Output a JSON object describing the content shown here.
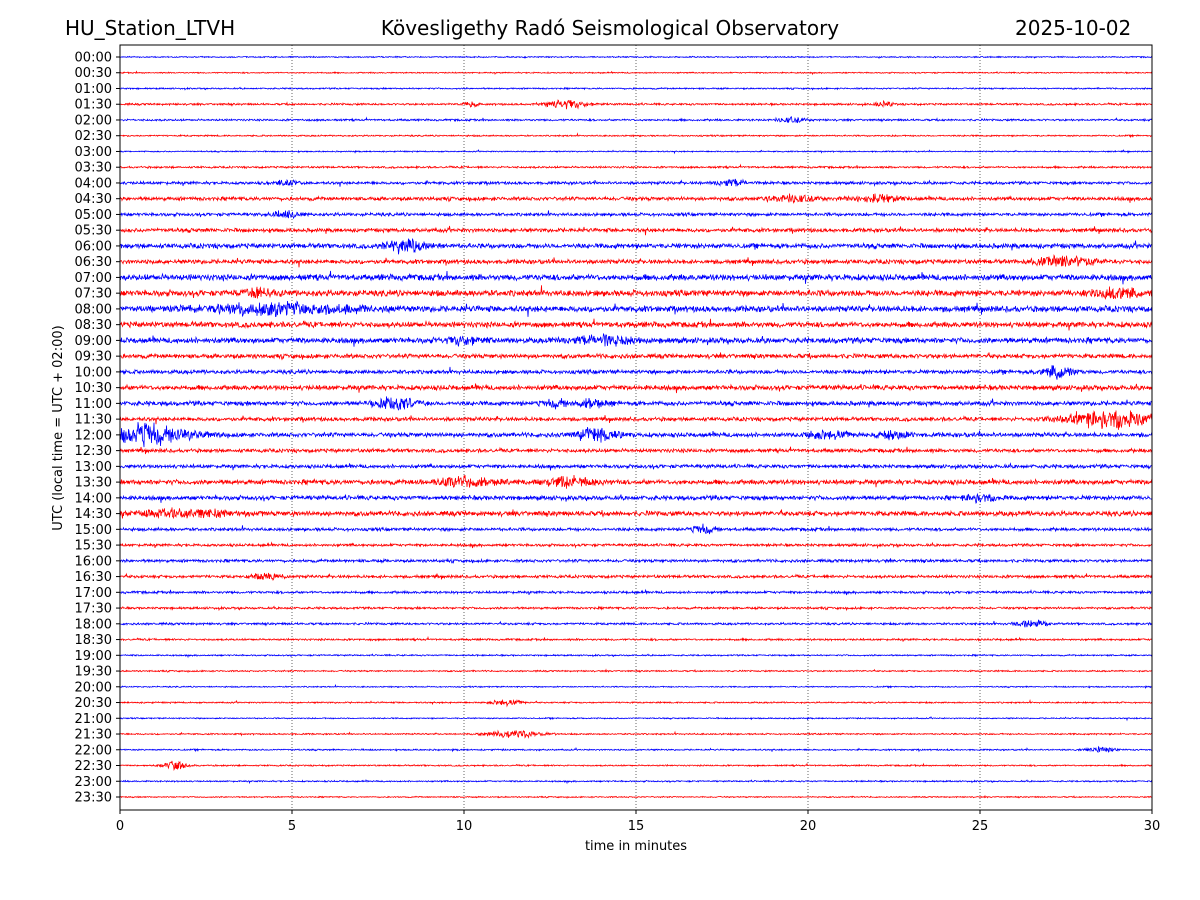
{
  "chart_data": {
    "type": "line",
    "title_left": "HU_Station_LTVH",
    "title": "Kövesligethy Radó Seismological Observatory",
    "title_right": "2025-10-02",
    "xlabel": "time in minutes",
    "ylabel": "UTC (local time = UTC + 02:00)",
    "xlim": [
      0,
      30
    ],
    "xticks": [
      "0",
      "5",
      "10",
      "15",
      "20",
      "25",
      "30"
    ],
    "grid": "vertical dotted at 5-minute ticks",
    "colors": [
      "#0000ff",
      "#ff0000"
    ],
    "rows": [
      "00:00",
      "00:30",
      "01:00",
      "01:30",
      "02:00",
      "02:30",
      "03:00",
      "03:30",
      "04:00",
      "04:30",
      "05:00",
      "05:30",
      "06:00",
      "06:30",
      "07:00",
      "07:30",
      "08:00",
      "08:30",
      "09:00",
      "09:30",
      "10:00",
      "10:30",
      "11:00",
      "11:30",
      "12:00",
      "12:30",
      "13:00",
      "13:30",
      "14:00",
      "14:30",
      "15:00",
      "15:30",
      "16:00",
      "16:30",
      "17:00",
      "17:30",
      "18:00",
      "18:30",
      "19:00",
      "19:30",
      "20:00",
      "20:30",
      "21:00",
      "21:30",
      "22:00",
      "22:30",
      "23:00",
      "23:30"
    ],
    "noise_level": [
      0.5,
      0.5,
      0.6,
      0.8,
      0.8,
      0.6,
      0.5,
      0.8,
      1.2,
      1.5,
      1.3,
      1.6,
      2,
      1.8,
      2.5,
      2.5,
      2.5,
      2.3,
      2.3,
      1.8,
      1.6,
      2,
      1.8,
      1.6,
      1.8,
      1.5,
      1.5,
      2,
      1.8,
      2,
      1.3,
      1.1,
      1.2,
      1.2,
      1,
      0.9,
      0.9,
      0.8,
      0.6,
      0.6,
      0.5,
      0.6,
      0.5,
      0.6,
      0.6,
      0.6,
      0.6,
      0.5
    ],
    "events": [
      {
        "row": "01:30",
        "minute": 13.0,
        "amplitude": 5,
        "duration": 1.5
      },
      {
        "row": "01:30",
        "minute": 10.2,
        "amplitude": 3,
        "duration": 0.5
      },
      {
        "row": "01:30",
        "minute": 22.2,
        "amplitude": 3,
        "duration": 0.6
      },
      {
        "row": "02:00",
        "minute": 19.5,
        "amplitude": 3,
        "duration": 1
      },
      {
        "row": "04:00",
        "minute": 4.8,
        "amplitude": 3,
        "duration": 0.8
      },
      {
        "row": "04:00",
        "minute": 17.8,
        "amplitude": 4,
        "duration": 1
      },
      {
        "row": "04:30",
        "minute": 19.5,
        "amplitude": 4,
        "duration": 1.5
      },
      {
        "row": "04:30",
        "minute": 22.0,
        "amplitude": 4,
        "duration": 1.5
      },
      {
        "row": "05:00",
        "minute": 4.8,
        "amplitude": 4,
        "duration": 1
      },
      {
        "row": "06:00",
        "minute": 8.3,
        "amplitude": 8,
        "duration": 1.5
      },
      {
        "row": "06:30",
        "minute": 27.5,
        "amplitude": 6,
        "duration": 2
      },
      {
        "row": "07:30",
        "minute": 4.0,
        "amplitude": 6,
        "duration": 1
      },
      {
        "row": "07:30",
        "minute": 29.0,
        "amplitude": 5,
        "duration": 1.5
      },
      {
        "row": "08:00",
        "minute": 4.5,
        "amplitude": 6,
        "duration": 5
      },
      {
        "row": "09:00",
        "minute": 10.0,
        "amplitude": 5,
        "duration": 1
      },
      {
        "row": "09:00",
        "minute": 14.0,
        "amplitude": 5,
        "duration": 2
      },
      {
        "row": "10:00",
        "minute": 27.3,
        "amplitude": 7,
        "duration": 1
      },
      {
        "row": "11:00",
        "minute": 8.0,
        "amplitude": 7,
        "duration": 1.5
      },
      {
        "row": "11:00",
        "minute": 12.7,
        "amplitude": 5,
        "duration": 0.8
      },
      {
        "row": "11:00",
        "minute": 13.7,
        "amplitude": 5,
        "duration": 0.8
      },
      {
        "row": "11:30",
        "minute": 28.8,
        "amplitude": 10,
        "duration": 3
      },
      {
        "row": "12:00",
        "minute": 0.8,
        "amplitude": 12,
        "duration": 3
      },
      {
        "row": "12:00",
        "minute": 13.9,
        "amplitude": 8,
        "duration": 1.5
      },
      {
        "row": "12:00",
        "minute": 20.5,
        "amplitude": 5,
        "duration": 1.5
      },
      {
        "row": "12:00",
        "minute": 22.5,
        "amplitude": 5,
        "duration": 1
      },
      {
        "row": "13:30",
        "minute": 10.0,
        "amplitude": 5,
        "duration": 2
      },
      {
        "row": "13:30",
        "minute": 13.0,
        "amplitude": 5,
        "duration": 2
      },
      {
        "row": "14:00",
        "minute": 25.0,
        "amplitude": 4,
        "duration": 1
      },
      {
        "row": "14:30",
        "minute": 2.0,
        "amplitude": 5,
        "duration": 3
      },
      {
        "row": "15:00",
        "minute": 17.0,
        "amplitude": 5,
        "duration": 0.8
      },
      {
        "row": "16:30",
        "minute": 4.3,
        "amplitude": 4,
        "duration": 1
      },
      {
        "row": "18:00",
        "minute": 26.5,
        "amplitude": 4,
        "duration": 1
      },
      {
        "row": "20:30",
        "minute": 11.2,
        "amplitude": 4,
        "duration": 1
      },
      {
        "row": "21:30",
        "minute": 11.5,
        "amplitude": 4,
        "duration": 2
      },
      {
        "row": "22:00",
        "minute": 28.5,
        "amplitude": 3,
        "duration": 1
      },
      {
        "row": "22:30",
        "minute": 1.6,
        "amplitude": 5,
        "duration": 0.8
      }
    ]
  }
}
